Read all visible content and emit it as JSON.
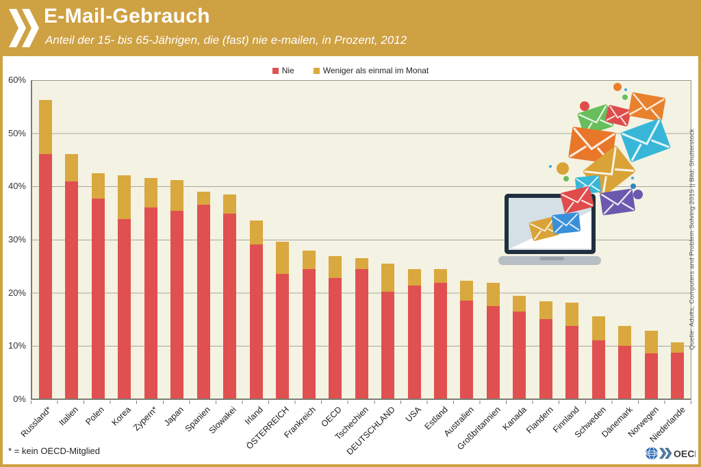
{
  "header": {
    "title": "E-Mail-Gebrauch",
    "subtitle": "Anteil der 15- bis 65-Jährigen, die (fast) nie e-mailen, in Prozent, 2012"
  },
  "legend": [
    {
      "label": "Nie",
      "color": "#E05050"
    },
    {
      "label": "Weniger als einmal im Monat",
      "color": "#D9A83E"
    }
  ],
  "chart_data": {
    "type": "bar",
    "stacked": true,
    "title": "E-Mail-Gebrauch",
    "subtitle": "Anteil der 15- bis 65-Jährigen, die (fast) nie e-mailen, in Prozent, 2012",
    "categories": [
      "Russland*",
      "Italien",
      "Polen",
      "Korea",
      "Zypern*",
      "Japan",
      "Spanien",
      "Slowakei",
      "Irland",
      "ÖSTERREICH",
      "Frankreich",
      "OECD",
      "Tschechien",
      "DEUTSCHLAND",
      "USA",
      "Estland",
      "Australien",
      "Großbritannien",
      "Kanada",
      "Flandern",
      "Finnland",
      "Schweden",
      "Dänemark",
      "Norwegen",
      "Niederlande"
    ],
    "series": [
      {
        "name": "Nie",
        "color": "#E05050",
        "values": [
          46.0,
          40.8,
          37.6,
          33.8,
          35.9,
          35.3,
          36.5,
          34.8,
          29.0,
          23.4,
          24.4,
          22.6,
          24.3,
          20.1,
          21.3,
          21.8,
          18.4,
          17.4,
          16.4,
          14.9,
          13.7,
          10.9,
          9.9,
          8.5,
          8.6
        ]
      },
      {
        "name": "Weniger als einmal im Monat",
        "color": "#D9A83E",
        "values": [
          10.2,
          5.2,
          4.7,
          8.2,
          5.5,
          5.8,
          2.4,
          3.6,
          4.5,
          6.1,
          3.4,
          4.2,
          2.1,
          5.3,
          3.1,
          2.5,
          3.7,
          4.4,
          2.9,
          3.4,
          4.3,
          4.6,
          3.8,
          4.3,
          1.9
        ]
      }
    ],
    "xlabel": "",
    "ylabel": "",
    "ylim": [
      0,
      60
    ],
    "yticks": [
      "0%",
      "10%",
      "20%",
      "30%",
      "40%",
      "50%",
      "60%"
    ],
    "grid": true,
    "legend_position": "top"
  },
  "footnote": "* = kein OECD-Mitglied",
  "source_credit": "Quelle: Adults, Computers and Problem Solving 2015 || Bild: Shutterstock",
  "footer": {
    "oecd_label": "OECD"
  },
  "colors": {
    "accent_gold": "#CEA143",
    "bar_red": "#E05050",
    "bar_yellow": "#D9A83E",
    "plot_background": "#F4F2E2",
    "text_on_gold": "#FFFFFF"
  }
}
